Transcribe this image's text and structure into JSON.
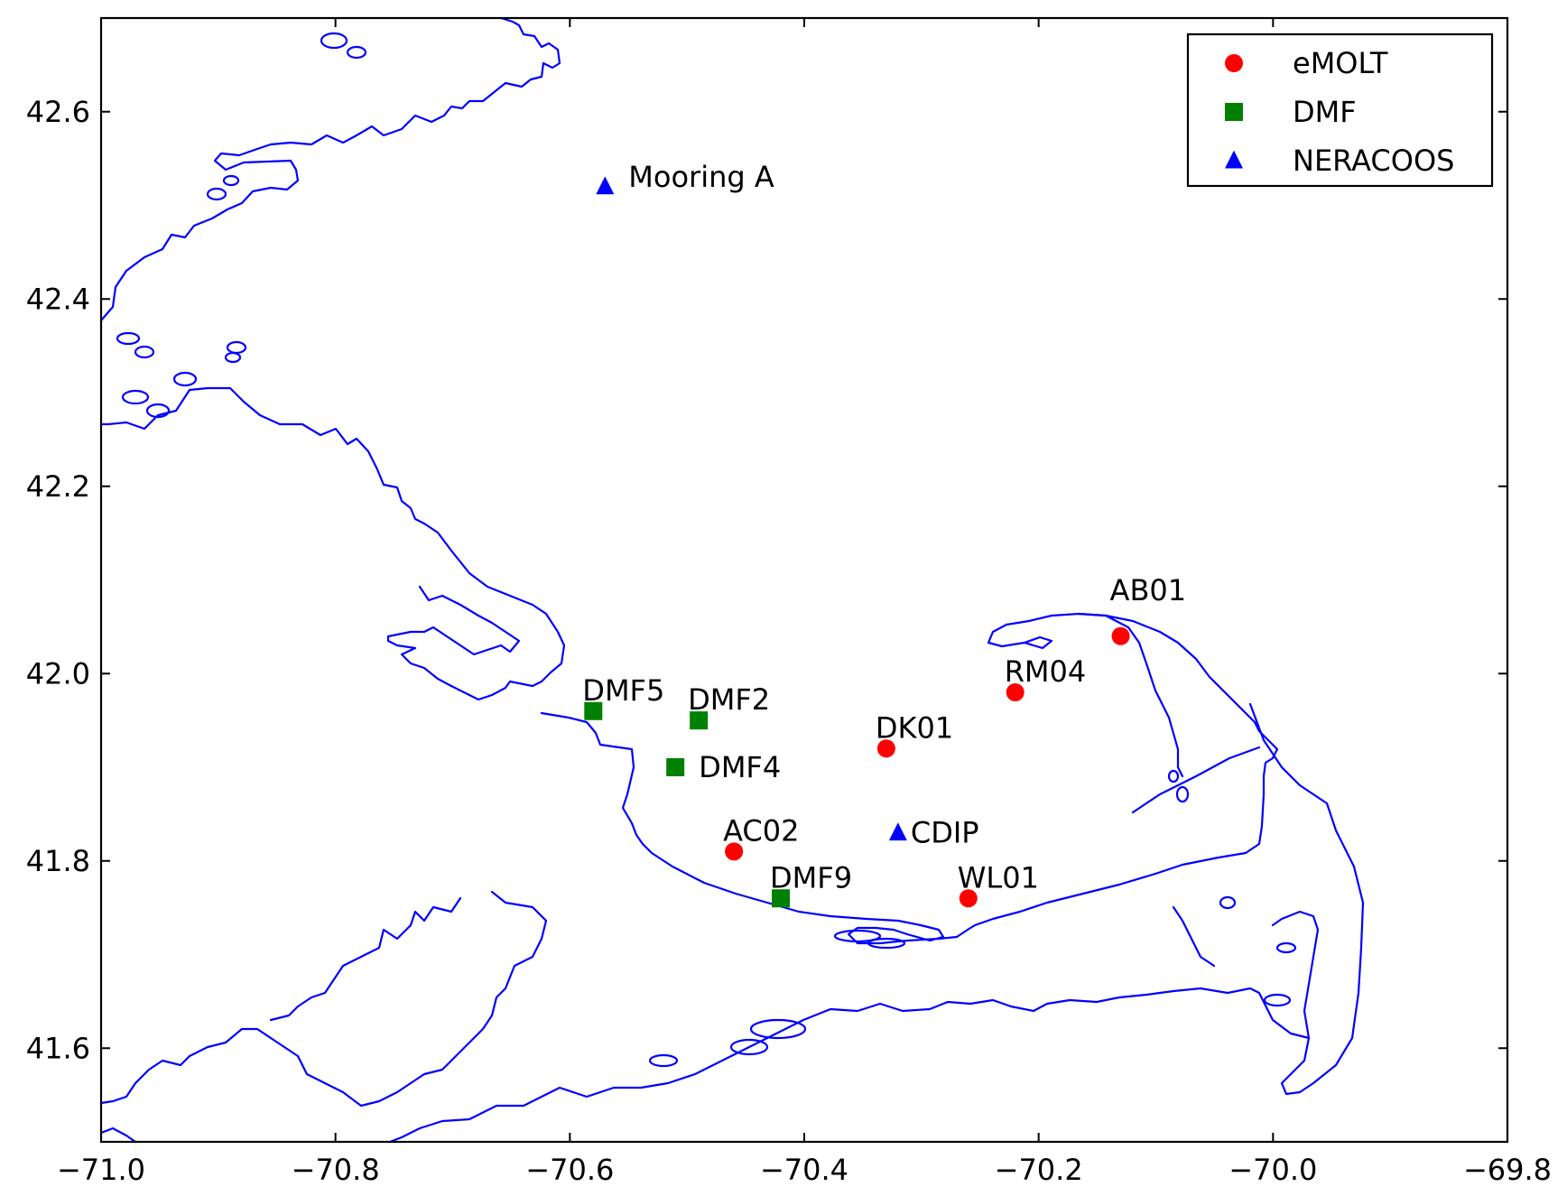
{
  "chart_data": {
    "type": "scatter",
    "title": "",
    "xlabel": "",
    "ylabel": "",
    "xlim": [
      -71.0,
      -69.8
    ],
    "ylim": [
      41.5,
      42.7
    ],
    "x_ticks": [
      -71.0,
      -70.8,
      -70.6,
      -70.4,
      -70.2,
      -70.0,
      -69.8
    ],
    "x_tick_labels": [
      "−71.0",
      "−70.8",
      "−70.6",
      "−70.4",
      "−70.2",
      "−70.0",
      "−69.8"
    ],
    "y_ticks": [
      41.6,
      41.8,
      42.0,
      42.2,
      42.4,
      42.6
    ],
    "y_tick_labels": [
      "41.6",
      "41.8",
      "42.0",
      "42.2",
      "42.4",
      "42.6"
    ],
    "grid": false,
    "legend_position": "top-right",
    "coastline_color": "#0000ff",
    "series": [
      {
        "name": "eMOLT",
        "marker": "circle",
        "color": "#ff0000",
        "points": [
          {
            "label": "AB01",
            "lon": -70.13,
            "lat": 42.04
          },
          {
            "label": "RM04",
            "lon": -70.22,
            "lat": 41.98
          },
          {
            "label": "DK01",
            "lon": -70.33,
            "lat": 41.92
          },
          {
            "label": "AC02",
            "lon": -70.46,
            "lat": 41.81
          },
          {
            "label": "WL01",
            "lon": -70.26,
            "lat": 41.76
          }
        ]
      },
      {
        "name": "DMF",
        "marker": "square",
        "color": "#008000",
        "points": [
          {
            "label": "DMF5",
            "lon": -70.58,
            "lat": 41.96
          },
          {
            "label": "DMF2",
            "lon": -70.49,
            "lat": 41.95
          },
          {
            "label": "DMF4",
            "lon": -70.51,
            "lat": 41.9
          },
          {
            "label": "DMF9",
            "lon": -70.42,
            "lat": 41.76
          }
        ]
      },
      {
        "name": "NERACOOS",
        "marker": "triangle",
        "color": "#0000ff",
        "points": [
          {
            "label": "Mooring A",
            "lon": -70.57,
            "lat": 42.52
          },
          {
            "label": "CDIP",
            "lon": -70.32,
            "lat": 41.83
          }
        ]
      }
    ]
  }
}
